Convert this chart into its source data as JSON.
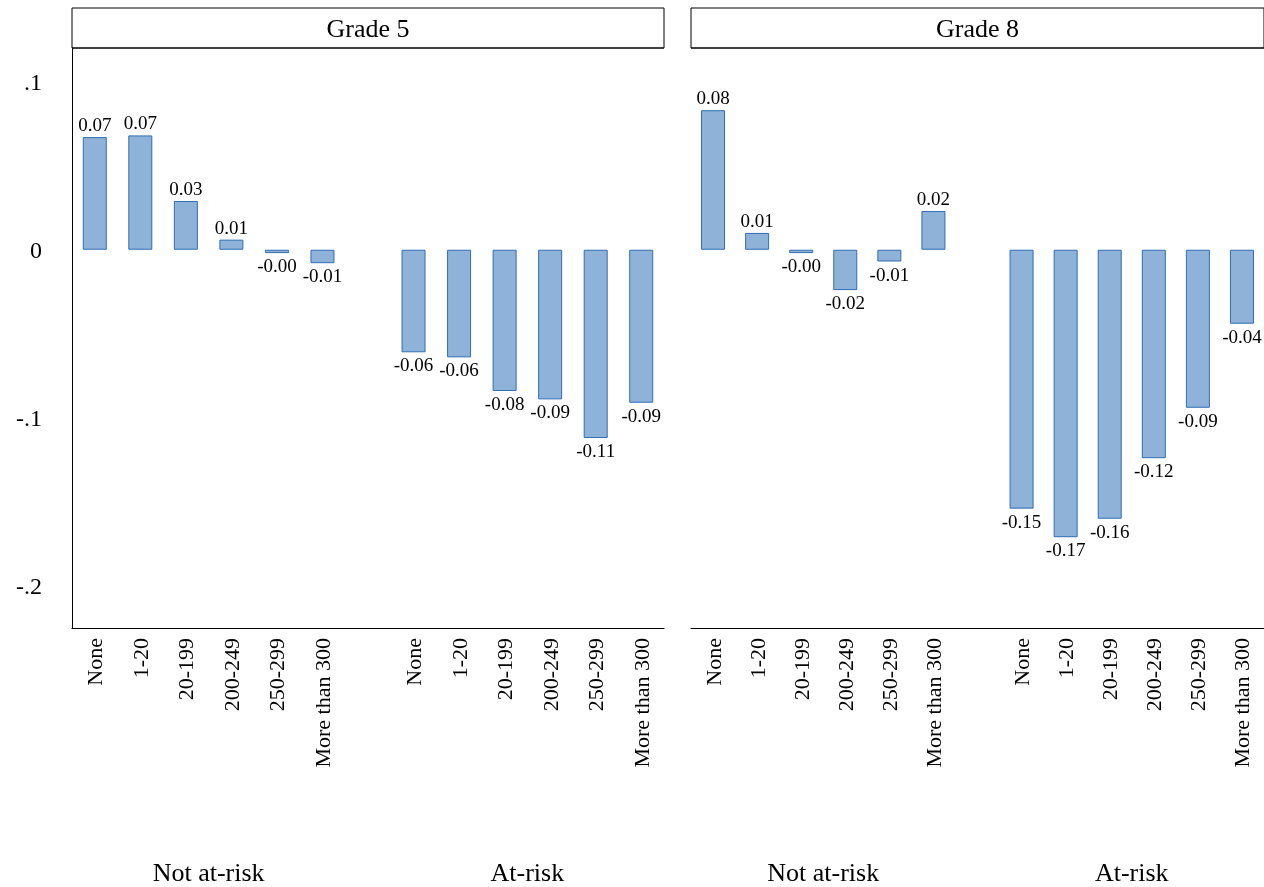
{
  "chart_data": [
    {
      "type": "bar",
      "title": "Grade 5",
      "categories": [
        "None",
        "1-20",
        "20-199",
        "200-249",
        "250-299",
        "More than 300",
        null,
        "None",
        "1-20",
        "20-199",
        "200-249",
        "250-299",
        "More than 300"
      ],
      "values": [
        0.067,
        0.068,
        0.029,
        0.006,
        -0.002,
        -0.008,
        null,
        -0.061,
        -0.064,
        -0.084,
        -0.089,
        -0.112,
        -0.091
      ],
      "value_labels": [
        "0.07",
        "0.07",
        "0.03",
        "0.01",
        "-0.00",
        "-0.01",
        null,
        "-0.06",
        "-0.06",
        "-0.08",
        "-0.09",
        "-0.11",
        "-0.09"
      ],
      "color": "#8fb2d8",
      "ylim": [
        -0.225,
        0.12
      ],
      "yticks": [
        {
          "value": 0.1,
          "label": ".1"
        },
        0,
        {
          "value": -0.1,
          "label": "-.1"
        },
        {
          "value": -0.2,
          "label": "-.2"
        }
      ],
      "annotations": [
        "Not at-risk",
        "At-risk"
      ],
      "grid": false
    },
    {
      "type": "bar",
      "title": "Grade 8",
      "categories": [
        "None",
        "1-20",
        "20-199",
        "200-249",
        "250-299",
        "More than 300",
        null,
        "None",
        "1-20",
        "20-199",
        "200-249",
        "250-299",
        "More than 300"
      ],
      "values": [
        0.083,
        0.01,
        -0.002,
        -0.024,
        -0.007,
        0.023,
        null,
        -0.154,
        -0.171,
        -0.16,
        -0.124,
        -0.094,
        -0.044
      ],
      "value_labels": [
        "0.08",
        "0.01",
        "-0.00",
        "-0.02",
        "-0.01",
        "0.02",
        null,
        "-0.15",
        "-0.17",
        "-0.16",
        "-0.12",
        "-0.09",
        "-0.04"
      ],
      "color": "#8fb2d8",
      "ylim": [
        -0.225,
        0.12
      ],
      "annotations": [
        "Not at-risk",
        "At-risk"
      ],
      "tick_labels": "x",
      "grid": false
    }
  ]
}
